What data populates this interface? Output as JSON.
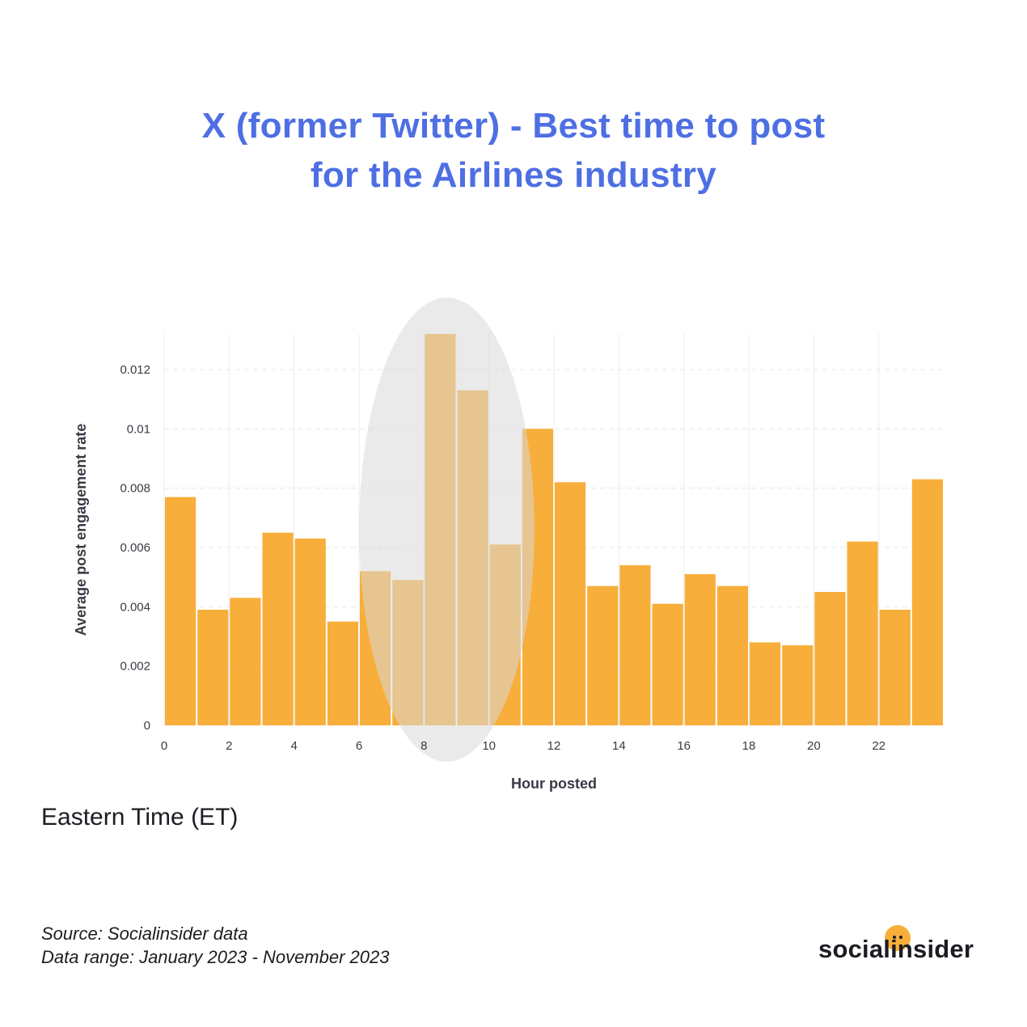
{
  "title_lines": [
    "X (former Twitter) - Best time to post",
    "for the Airlines industry"
  ],
  "timezone_label": "Eastern Time (ET)",
  "source_lines": [
    "Source: Socialinsider data",
    "Data range: January 2023 - November 2023"
  ],
  "brand": "socialinsider",
  "colors": {
    "title": "#4e6fe3",
    "bar": "#f7ae3a",
    "highlight": "#e8e8e8",
    "brand_dot": "#f7ae3a"
  },
  "chart_data": {
    "type": "bar",
    "xlabel": "Hour posted",
    "ylabel": "Average post engagement rate",
    "categories": [
      0,
      1,
      2,
      3,
      4,
      5,
      6,
      7,
      8,
      9,
      10,
      11,
      12,
      13,
      14,
      15,
      16,
      17,
      18,
      19,
      20,
      21,
      22,
      23
    ],
    "values": [
      0.0077,
      0.0039,
      0.0043,
      0.0065,
      0.0063,
      0.0035,
      0.0052,
      0.0049,
      0.0132,
      0.0113,
      0.0061,
      0.01,
      0.0082,
      0.0047,
      0.0054,
      0.0041,
      0.0051,
      0.0047,
      0.0028,
      0.0027,
      0.0045,
      0.0062,
      0.0039,
      0.0083
    ],
    "x_ticks": [
      "0",
      "2",
      "4",
      "6",
      "8",
      "10",
      "12",
      "14",
      "16",
      "18",
      "20",
      "22"
    ],
    "y_ticks": [
      "0",
      "0.002",
      "0.004",
      "0.006",
      "0.008",
      "0.01",
      "0.012"
    ],
    "ylim": [
      0,
      0.0132
    ],
    "grid": true,
    "highlight_hours": [
      7,
      10
    ]
  }
}
